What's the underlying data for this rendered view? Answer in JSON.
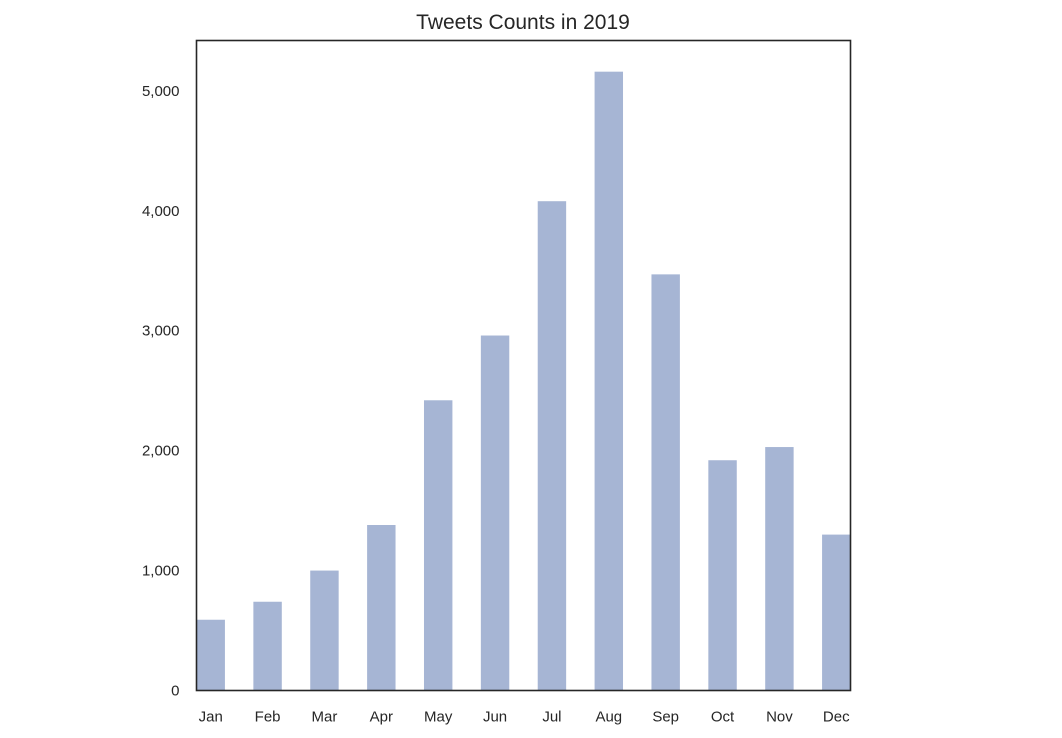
{
  "chart_data": {
    "type": "bar",
    "title": "Tweets Counts in 2019",
    "xlabel": "",
    "ylabel": "",
    "categories": [
      "Jan",
      "Feb",
      "Mar",
      "Apr",
      "May",
      "Jun",
      "Jul",
      "Aug",
      "Sep",
      "Oct",
      "Nov",
      "Dec"
    ],
    "values": [
      590,
      740,
      1000,
      1380,
      2420,
      2960,
      4080,
      5160,
      3470,
      1920,
      2030,
      1300
    ],
    "ylim": [
      0,
      5420
    ],
    "yticks": [
      0,
      1000,
      2000,
      3000,
      4000,
      5000
    ],
    "ytick_labels": [
      "0",
      "1,000",
      "2,000",
      "3,000",
      "4,000",
      "5,000"
    ],
    "grid": false,
    "legend": "none",
    "bar_color": "#a6b5d4",
    "frame_color": "#262626",
    "text_color": "#262626"
  }
}
